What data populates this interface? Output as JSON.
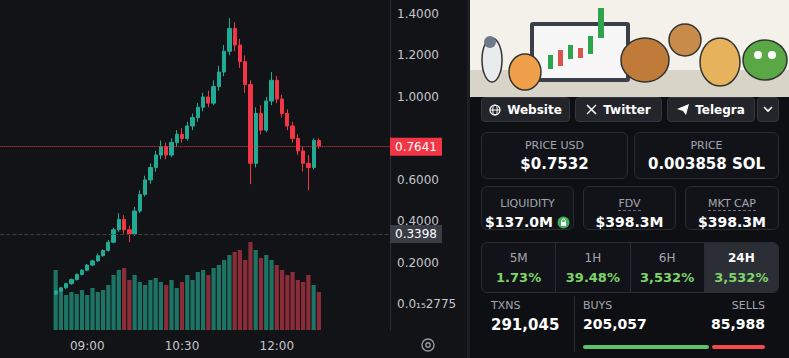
{
  "chart_data": {
    "type": "candlestick",
    "categories": [
      null,
      null,
      null,
      null,
      null,
      null,
      null,
      null,
      null,
      null,
      null,
      null,
      null,
      null,
      null,
      null,
      "09:00",
      null,
      null,
      null,
      null,
      null,
      null,
      null,
      null,
      null,
      null,
      null,
      null,
      null,
      null,
      null,
      null,
      null,
      "10:30",
      null,
      null,
      null,
      null,
      null,
      null,
      null,
      null,
      null,
      null,
      null,
      null,
      null,
      null,
      null,
      null,
      null,
      "12:00",
      null,
      null,
      null,
      null,
      null,
      null,
      null,
      null,
      null,
      null,
      null,
      null,
      null,
      null,
      null,
      null,
      null,
      null,
      null,
      null,
      null
    ],
    "series": [
      {
        "type": "candlestick",
        "values": [
          null,
          null,
          null,
          null,
          null,
          null,
          null,
          null,
          null,
          null,
          [
            0.05,
            0.065,
            0.045,
            0.07
          ],
          [
            0.065,
            0.08,
            0.06,
            0.085
          ],
          [
            0.08,
            0.1,
            0.075,
            0.105
          ],
          [
            0.1,
            0.12,
            0.095,
            0.125
          ],
          [
            0.12,
            0.145,
            0.115,
            0.15
          ],
          [
            0.145,
            0.165,
            0.14,
            0.17
          ],
          [
            0.165,
            0.19,
            0.16,
            0.195
          ],
          [
            0.19,
            0.21,
            0.185,
            0.215
          ],
          [
            0.21,
            0.235,
            0.205,
            0.245
          ],
          [
            0.235,
            0.26,
            0.23,
            0.265
          ],
          [
            0.26,
            0.3,
            0.255,
            0.31
          ],
          [
            0.3,
            0.36,
            0.295,
            0.37
          ],
          [
            0.36,
            0.41,
            0.35,
            0.44
          ],
          [
            0.41,
            0.36,
            0.34,
            0.43
          ],
          [
            0.36,
            0.34,
            0.3,
            0.38
          ],
          [
            0.34,
            0.45,
            0.33,
            0.47
          ],
          [
            0.45,
            0.53,
            0.44,
            0.55
          ],
          [
            0.53,
            0.6,
            0.52,
            0.62
          ],
          [
            0.6,
            0.66,
            0.58,
            0.68
          ],
          [
            0.66,
            0.72,
            0.64,
            0.74
          ],
          [
            0.72,
            0.76,
            0.7,
            0.79
          ],
          [
            0.76,
            0.72,
            0.7,
            0.78
          ],
          [
            0.72,
            0.78,
            0.71,
            0.8
          ],
          [
            0.78,
            0.82,
            0.76,
            0.84
          ],
          [
            0.82,
            0.8,
            0.78,
            0.85
          ],
          [
            0.8,
            0.86,
            0.79,
            0.88
          ],
          [
            0.86,
            0.9,
            0.84,
            0.92
          ],
          [
            0.9,
            0.95,
            0.88,
            0.97
          ],
          [
            0.95,
            1.0,
            0.93,
            1.02
          ],
          [
            1.0,
            0.97,
            0.95,
            1.03
          ],
          [
            0.97,
            1.05,
            0.96,
            1.08
          ],
          [
            1.05,
            1.12,
            1.03,
            1.15
          ],
          [
            1.12,
            1.22,
            1.1,
            1.25
          ],
          [
            1.22,
            1.33,
            1.2,
            1.38
          ],
          [
            1.33,
            1.25,
            1.22,
            1.36
          ],
          [
            1.25,
            1.17,
            1.14,
            1.28
          ],
          [
            1.17,
            1.06,
            1.02,
            1.2
          ],
          [
            1.06,
            0.68,
            0.58,
            1.08
          ],
          [
            0.68,
            0.92,
            0.66,
            0.95
          ],
          [
            0.92,
            0.84,
            0.82,
            0.96
          ],
          [
            0.84,
            0.98,
            0.83,
            1.0
          ],
          [
            0.98,
            1.08,
            0.96,
            1.12
          ],
          [
            1.08,
            0.99,
            0.97,
            1.1
          ],
          [
            0.99,
            0.92,
            0.9,
            1.01
          ],
          [
            0.92,
            0.86,
            0.84,
            0.94
          ],
          [
            0.86,
            0.8,
            0.78,
            0.88
          ],
          [
            0.8,
            0.74,
            0.72,
            0.82
          ],
          [
            0.74,
            0.68,
            0.64,
            0.76
          ],
          [
            0.68,
            0.66,
            0.55,
            0.72
          ],
          [
            0.66,
            0.79,
            0.65,
            0.8
          ],
          [
            0.79,
            0.7641,
            0.75,
            0.8
          ],
          null,
          null,
          null,
          null,
          null,
          null,
          null,
          null,
          null,
          null,
          null,
          null,
          null
        ],
        "colors": [
          null,
          null,
          null,
          null,
          null,
          null,
          null,
          null,
          null,
          null,
          "#22ab94",
          "#22ab94",
          "#22ab94",
          "#22ab94",
          "#22ab94",
          "#22ab94",
          "#22ab94",
          "#22ab94",
          "#22ab94",
          "#22ab94",
          "#22ab94",
          "#22ab94",
          "#22ab94",
          "#f23645",
          "#f23645",
          "#22ab94",
          "#22ab94",
          "#22ab94",
          "#22ab94",
          "#22ab94",
          "#22ab94",
          "#f23645",
          "#22ab94",
          "#22ab94",
          "#f23645",
          "#22ab94",
          "#22ab94",
          "#22ab94",
          "#22ab94",
          "#f23645",
          "#22ab94",
          "#22ab94",
          "#22ab94",
          "#22ab94",
          "#f23645",
          "#f23645",
          "#f23645",
          "#f23645",
          "#22ab94",
          "#f23645",
          "#22ab94",
          "#22ab94",
          "#f23645",
          "#f23645",
          "#f23645",
          "#f23645",
          "#f23645",
          "#f23645",
          "#f23645",
          "#22ab94",
          "#f23645",
          null,
          null,
          null,
          null,
          null,
          null,
          null,
          null,
          null,
          null,
          null,
          null,
          null
        ]
      },
      {
        "type": "bar",
        "axis": "y2",
        "values": [
          null,
          null,
          null,
          null,
          null,
          null,
          null,
          null,
          null,
          null,
          60,
          40,
          35,
          38,
          36,
          40,
          35,
          42,
          38,
          40,
          45,
          55,
          60,
          62,
          50,
          55,
          48,
          45,
          50,
          52,
          48,
          45,
          50,
          42,
          48,
          55,
          50,
          58,
          60,
          55,
          62,
          65,
          70,
          75,
          78,
          80,
          70,
          88,
          80,
          72,
          75,
          70,
          65,
          60,
          55,
          58,
          50,
          48,
          55,
          45,
          38,
          null,
          null,
          null,
          null,
          null,
          null,
          null,
          null,
          null,
          null,
          null,
          null,
          null
        ],
        "colors": [
          null,
          null,
          null,
          null,
          null,
          null,
          null,
          null,
          null,
          null,
          "#1d7465",
          "#1d7465",
          "#1d7465",
          "#1d7465",
          "#1d7465",
          "#1d7465",
          "#1d7465",
          "#1d7465",
          "#1d7465",
          "#1d7465",
          "#1d7465",
          "#1d7465",
          "#1d7465",
          "#8a2d39",
          "#8a2d39",
          "#1d7465",
          "#1d7465",
          "#1d7465",
          "#1d7465",
          "#1d7465",
          "#1d7465",
          "#8a2d39",
          "#1d7465",
          "#1d7465",
          "#8a2d39",
          "#1d7465",
          "#1d7465",
          "#1d7465",
          "#1d7465",
          "#8a2d39",
          "#1d7465",
          "#1d7465",
          "#1d7465",
          "#1d7465",
          "#8a2d39",
          "#8a2d39",
          "#8a2d39",
          "#8a2d39",
          "#1d7465",
          "#8a2d39",
          "#1d7465",
          "#1d7465",
          "#8a2d39",
          "#8a2d39",
          "#8a2d39",
          "#8a2d39",
          "#8a2d39",
          "#8a2d39",
          "#8a2d39",
          "#1d7465",
          "#8a2d39",
          null,
          null,
          null,
          null,
          null,
          null,
          null,
          null,
          null,
          null,
          null,
          null,
          null
        ]
      }
    ],
    "ylim": [
      -0.123,
      1.467
    ],
    "yticks": [
      {
        "value": 2.775e-16,
        "label": "0.0₁₅2775"
      },
      {
        "value": 0.2,
        "label": "0.2000"
      },
      {
        "value": 0.4,
        "label": "0.4000"
      },
      {
        "value": 0.6,
        "label": "0.6000"
      },
      {
        "value": 1.0,
        "label": "1.0000"
      },
      {
        "value": 1.2,
        "label": "1.2000"
      },
      {
        "value": 1.4,
        "label": "1.4000"
      }
    ],
    "y2lim": [
      0,
      330
    ],
    "y2ticks": [],
    "grid": false,
    "annotations": [
      {
        "value": 0.7641,
        "label": "0.7641",
        "color": "#f23645",
        "line_style": "dotted"
      },
      {
        "value": 0.3398,
        "label": "0.3398",
        "color": "#3a3d46",
        "line_style": "dashed"
      }
    ]
  },
  "panel": {
    "links": [
      "Website",
      "Twitter",
      "Telegra"
    ],
    "prices": [
      {
        "label": "PRICE USD",
        "value": "$0.7532"
      },
      {
        "label": "PRICE",
        "value": "0.003858 SOL"
      }
    ],
    "stats": [
      {
        "label": "LIQUIDITY",
        "value": "$137.0M"
      },
      {
        "label": "FDV",
        "value": "$398.3M"
      },
      {
        "label": "MKT CAP",
        "value": "$398.3M"
      }
    ],
    "changes": [
      {
        "label": "5M",
        "value": "1.73%"
      },
      {
        "label": "1H",
        "value": "39.48%"
      },
      {
        "label": "6H",
        "value": "3,532%"
      },
      {
        "label": "24H",
        "value": "3,532%",
        "selected": true
      }
    ],
    "txns": {
      "label": "TXNS",
      "value": "291,045"
    },
    "buys": {
      "label": "BUYS",
      "value": "205,057"
    },
    "sells": {
      "label": "SELLS",
      "value": "85,988"
    }
  }
}
